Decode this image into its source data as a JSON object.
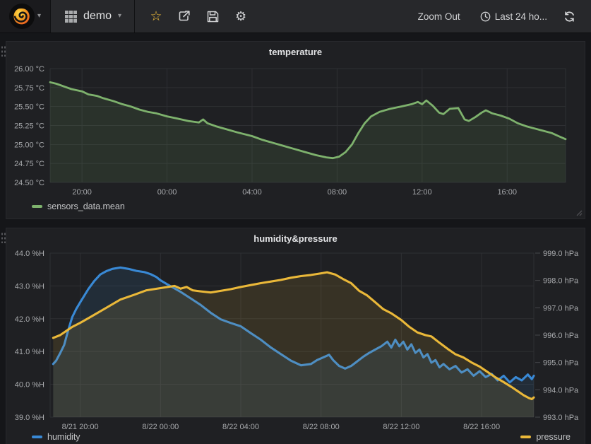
{
  "navbar": {
    "dashboard_name": "demo",
    "zoom_out_label": "Zoom Out",
    "time_range_label": "Last 24 ho...",
    "icons": {
      "star": "☆",
      "gear": "⚙",
      "caret": "▾"
    },
    "accent_color": "#eab839"
  },
  "chart_data": [
    {
      "type": "line",
      "title": "temperature",
      "xlim": [
        0,
        24.25
      ],
      "x_ticks": [
        {
          "t": 1.5,
          "label": "20:00"
        },
        {
          "t": 5.5,
          "label": "00:00"
        },
        {
          "t": 9.5,
          "label": "04:00"
        },
        {
          "t": 13.5,
          "label": "08:00"
        },
        {
          "t": 17.5,
          "label": "12:00"
        },
        {
          "t": 21.5,
          "label": "16:00"
        }
      ],
      "y_left": {
        "unit": "°C",
        "min": 24.5,
        "max": 26.0,
        "ticks": [
          {
            "v": 26.0,
            "label": "26.00 °C"
          },
          {
            "v": 25.75,
            "label": "25.75 °C"
          },
          {
            "v": 25.5,
            "label": "25.50 °C"
          },
          {
            "v": 25.25,
            "label": "25.25 °C"
          },
          {
            "v": 25.0,
            "label": "25.00 °C"
          },
          {
            "v": 24.75,
            "label": "24.75 °C"
          },
          {
            "v": 24.5,
            "label": "24.50 °C"
          }
        ]
      },
      "series": [
        {
          "name": "sensors_data.mean",
          "color": "#7eb26d",
          "axis": "left",
          "points": [
            [
              0,
              25.82
            ],
            [
              0.3,
              25.8
            ],
            [
              0.7,
              25.76
            ],
            [
              1.0,
              25.73
            ],
            [
              1.5,
              25.7
            ],
            [
              1.8,
              25.66
            ],
            [
              2.2,
              25.64
            ],
            [
              2.5,
              25.61
            ],
            [
              3.0,
              25.57
            ],
            [
              3.4,
              25.53
            ],
            [
              3.8,
              25.5
            ],
            [
              4.2,
              25.46
            ],
            [
              4.6,
              25.43
            ],
            [
              5.0,
              25.41
            ],
            [
              5.5,
              25.37
            ],
            [
              6.0,
              25.34
            ],
            [
              6.5,
              25.31
            ],
            [
              7.0,
              25.29
            ],
            [
              7.2,
              25.33
            ],
            [
              7.4,
              25.28
            ],
            [
              7.8,
              25.24
            ],
            [
              8.3,
              25.2
            ],
            [
              8.8,
              25.16
            ],
            [
              9.5,
              25.11
            ],
            [
              10.0,
              25.06
            ],
            [
              10.5,
              25.02
            ],
            [
              11.0,
              24.98
            ],
            [
              11.5,
              24.94
            ],
            [
              12.0,
              24.9
            ],
            [
              12.5,
              24.86
            ],
            [
              13.0,
              24.83
            ],
            [
              13.3,
              24.82
            ],
            [
              13.6,
              24.84
            ],
            [
              13.9,
              24.9
            ],
            [
              14.2,
              25.0
            ],
            [
              14.5,
              25.15
            ],
            [
              14.8,
              25.28
            ],
            [
              15.1,
              25.37
            ],
            [
              15.5,
              25.43
            ],
            [
              16.0,
              25.47
            ],
            [
              16.5,
              25.5
            ],
            [
              17.0,
              25.53
            ],
            [
              17.3,
              25.56
            ],
            [
              17.5,
              25.53
            ],
            [
              17.7,
              25.58
            ],
            [
              18.0,
              25.51
            ],
            [
              18.3,
              25.42
            ],
            [
              18.5,
              25.4
            ],
            [
              18.8,
              25.47
            ],
            [
              19.2,
              25.48
            ],
            [
              19.5,
              25.33
            ],
            [
              19.7,
              25.31
            ],
            [
              20.0,
              25.36
            ],
            [
              20.3,
              25.42
            ],
            [
              20.5,
              25.45
            ],
            [
              20.8,
              25.41
            ],
            [
              21.2,
              25.38
            ],
            [
              21.6,
              25.34
            ],
            [
              22.0,
              25.28
            ],
            [
              22.4,
              25.24
            ],
            [
              22.8,
              25.21
            ],
            [
              23.2,
              25.18
            ],
            [
              23.6,
              25.15
            ],
            [
              24.0,
              25.1
            ],
            [
              24.25,
              25.07
            ]
          ]
        }
      ]
    },
    {
      "type": "line",
      "title": "humidity&pressure",
      "xlim": [
        0,
        24.1
      ],
      "x_ticks": [
        {
          "t": 1.5,
          "label": "8/21 20:00"
        },
        {
          "t": 5.5,
          "label": "8/22 00:00"
        },
        {
          "t": 9.5,
          "label": "8/22 04:00"
        },
        {
          "t": 13.5,
          "label": "8/22 08:00"
        },
        {
          "t": 17.5,
          "label": "8/22 12:00"
        },
        {
          "t": 21.5,
          "label": "8/22 16:00"
        }
      ],
      "y_left": {
        "unit": "%H",
        "min": 39.0,
        "max": 44.0,
        "ticks": [
          {
            "v": 44.0,
            "label": "44.0 %H"
          },
          {
            "v": 43.0,
            "label": "43.0 %H"
          },
          {
            "v": 42.0,
            "label": "42.0 %H"
          },
          {
            "v": 41.0,
            "label": "41.0 %H"
          },
          {
            "v": 40.0,
            "label": "40.0 %H"
          },
          {
            "v": 39.0,
            "label": "39.0 %H"
          }
        ]
      },
      "y_right": {
        "unit": "hPa",
        "min": 993.0,
        "max": 999.0,
        "ticks": [
          {
            "v": 999.0,
            "label": "999.0 hPa"
          },
          {
            "v": 998.0,
            "label": "998.0 hPa"
          },
          {
            "v": 997.0,
            "label": "997.0 hPa"
          },
          {
            "v": 996.0,
            "label": "996.0 hPa"
          },
          {
            "v": 995.0,
            "label": "995.0 hPa"
          },
          {
            "v": 994.0,
            "label": "994.0 hPa"
          },
          {
            "v": 993.0,
            "label": "993.0 hPa"
          }
        ]
      },
      "series": [
        {
          "name": "humidity",
          "color": "#3989d5",
          "axis": "left",
          "points": [
            [
              0.15,
              40.62
            ],
            [
              0.3,
              40.72
            ],
            [
              0.5,
              40.95
            ],
            [
              0.7,
              41.2
            ],
            [
              0.9,
              41.65
            ],
            [
              1.1,
              42.05
            ],
            [
              1.3,
              42.3
            ],
            [
              1.5,
              42.5
            ],
            [
              1.7,
              42.7
            ],
            [
              1.9,
              42.9
            ],
            [
              2.2,
              43.15
            ],
            [
              2.5,
              43.35
            ],
            [
              2.8,
              43.45
            ],
            [
              3.1,
              43.52
            ],
            [
              3.5,
              43.56
            ],
            [
              3.9,
              43.52
            ],
            [
              4.3,
              43.46
            ],
            [
              4.7,
              43.42
            ],
            [
              5.0,
              43.36
            ],
            [
              5.3,
              43.27
            ],
            [
              5.5,
              43.17
            ],
            [
              5.8,
              43.06
            ],
            [
              6.1,
              42.96
            ],
            [
              6.5,
              42.82
            ],
            [
              7.0,
              42.62
            ],
            [
              7.5,
              42.42
            ],
            [
              8.0,
              42.18
            ],
            [
              8.5,
              41.98
            ],
            [
              9.0,
              41.87
            ],
            [
              9.5,
              41.77
            ],
            [
              10.0,
              41.56
            ],
            [
              10.5,
              41.36
            ],
            [
              11.0,
              41.12
            ],
            [
              11.5,
              40.92
            ],
            [
              12.0,
              40.72
            ],
            [
              12.5,
              40.58
            ],
            [
              13.0,
              40.62
            ],
            [
              13.3,
              40.74
            ],
            [
              13.6,
              40.82
            ],
            [
              13.9,
              40.9
            ],
            [
              14.1,
              40.74
            ],
            [
              14.4,
              40.56
            ],
            [
              14.7,
              40.48
            ],
            [
              15.0,
              40.56
            ],
            [
              15.3,
              40.7
            ],
            [
              15.6,
              40.84
            ],
            [
              15.9,
              40.96
            ],
            [
              16.2,
              41.06
            ],
            [
              16.5,
              41.16
            ],
            [
              16.8,
              41.3
            ],
            [
              17.0,
              41.12
            ],
            [
              17.2,
              41.36
            ],
            [
              17.4,
              41.16
            ],
            [
              17.6,
              41.3
            ],
            [
              17.8,
              41.06
            ],
            [
              18.0,
              41.22
            ],
            [
              18.2,
              40.96
            ],
            [
              18.4,
              41.06
            ],
            [
              18.6,
              40.82
            ],
            [
              18.8,
              40.92
            ],
            [
              19.0,
              40.66
            ],
            [
              19.2,
              40.74
            ],
            [
              19.4,
              40.52
            ],
            [
              19.6,
              40.62
            ],
            [
              19.9,
              40.46
            ],
            [
              20.2,
              40.56
            ],
            [
              20.5,
              40.36
            ],
            [
              20.8,
              40.46
            ],
            [
              21.1,
              40.26
            ],
            [
              21.4,
              40.4
            ],
            [
              21.7,
              40.22
            ],
            [
              22.0,
              40.32
            ],
            [
              22.3,
              40.12
            ],
            [
              22.6,
              40.26
            ],
            [
              22.9,
              40.06
            ],
            [
              23.2,
              40.22
            ],
            [
              23.5,
              40.12
            ],
            [
              23.8,
              40.3
            ],
            [
              24.0,
              40.16
            ],
            [
              24.1,
              40.26
            ]
          ]
        },
        {
          "name": "pressure",
          "color": "#eab839",
          "axis": "right",
          "points": [
            [
              0.15,
              995.9
            ],
            [
              0.5,
              996.0
            ],
            [
              0.8,
              996.15
            ],
            [
              1.1,
              996.3
            ],
            [
              1.5,
              996.45
            ],
            [
              2.1,
              996.7
            ],
            [
              2.8,
              997.0
            ],
            [
              3.5,
              997.3
            ],
            [
              4.2,
              997.48
            ],
            [
              4.8,
              997.64
            ],
            [
              5.5,
              997.72
            ],
            [
              6.2,
              997.8
            ],
            [
              6.5,
              997.7
            ],
            [
              6.8,
              997.76
            ],
            [
              7.1,
              997.64
            ],
            [
              7.5,
              997.6
            ],
            [
              8.0,
              997.56
            ],
            [
              8.5,
              997.62
            ],
            [
              9.0,
              997.68
            ],
            [
              9.5,
              997.76
            ],
            [
              10.0,
              997.83
            ],
            [
              10.5,
              997.9
            ],
            [
              11.0,
              997.96
            ],
            [
              11.5,
              998.02
            ],
            [
              12.0,
              998.1
            ],
            [
              12.5,
              998.16
            ],
            [
              13.0,
              998.2
            ],
            [
              13.5,
              998.26
            ],
            [
              13.8,
              998.3
            ],
            [
              14.2,
              998.22
            ],
            [
              14.6,
              998.05
            ],
            [
              15.0,
              997.9
            ],
            [
              15.4,
              997.62
            ],
            [
              15.8,
              997.45
            ],
            [
              16.2,
              997.2
            ],
            [
              16.6,
              996.95
            ],
            [
              17.0,
              996.8
            ],
            [
              17.5,
              996.55
            ],
            [
              17.9,
              996.3
            ],
            [
              18.3,
              996.1
            ],
            [
              18.7,
              996.0
            ],
            [
              19.0,
              995.95
            ],
            [
              19.4,
              995.72
            ],
            [
              19.8,
              995.5
            ],
            [
              20.2,
              995.3
            ],
            [
              20.6,
              995.18
            ],
            [
              21.0,
              995.0
            ],
            [
              21.4,
              994.85
            ],
            [
              21.8,
              994.65
            ],
            [
              22.2,
              994.45
            ],
            [
              22.6,
              994.28
            ],
            [
              23.0,
              994.1
            ],
            [
              23.3,
              993.95
            ],
            [
              23.6,
              993.8
            ],
            [
              23.85,
              993.7
            ],
            [
              24.0,
              993.66
            ],
            [
              24.1,
              993.72
            ]
          ]
        }
      ]
    }
  ]
}
